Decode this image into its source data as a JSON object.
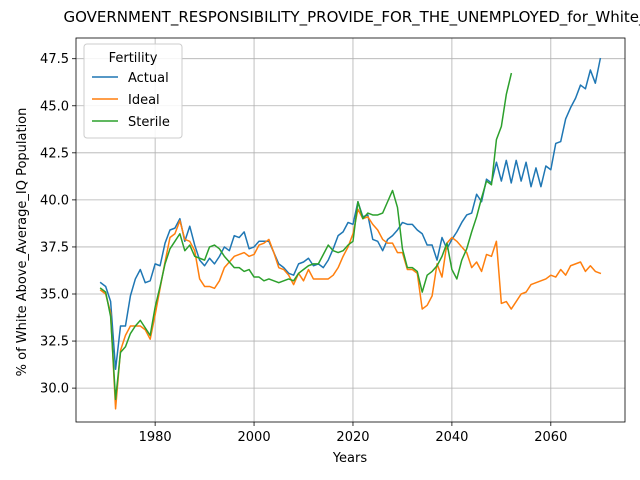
{
  "chart_data": {
    "type": "line",
    "title": "GOVERNMENT_RESPONSIBILITY_PROVIDE_FOR_THE_UNEMPLOYED_for_White_",
    "xlabel": "Years",
    "ylabel": "% of White Above_Average_IQ Population",
    "xlim": [
      1964,
      2075
    ],
    "ylim": [
      28.2,
      48.6
    ],
    "xticks": [
      1980,
      2000,
      2020,
      2040,
      2060
    ],
    "yticks": [
      30.0,
      32.5,
      35.0,
      37.5,
      40.0,
      42.5,
      45.0,
      47.5
    ],
    "ytick_labels": [
      "30.0",
      "32.5",
      "35.0",
      "37.5",
      "40.0",
      "42.5",
      "45.0",
      "47.5"
    ],
    "grid": true,
    "legend": {
      "title": "Fertility",
      "placement": "top-left"
    },
    "series": [
      {
        "name": "Actual",
        "color": "#1f77b4",
        "x": [
          1969,
          1970,
          1971,
          1972,
          1973,
          1974,
          1975,
          1976,
          1977,
          1978,
          1979,
          1980,
          1981,
          1982,
          1983,
          1984,
          1985,
          1986,
          1987,
          1988,
          1989,
          1990,
          1991,
          1992,
          1993,
          1994,
          1995,
          1996,
          1997,
          1998,
          1999,
          2000,
          2001,
          2002,
          2003,
          2004,
          2005,
          2006,
          2007,
          2008,
          2009,
          2010,
          2011,
          2012,
          2013,
          2014,
          2015,
          2016,
          2017,
          2018,
          2019,
          2020,
          2021,
          2022,
          2023,
          2024,
          2025,
          2026,
          2027,
          2028,
          2029,
          2030,
          2031,
          2032,
          2033,
          2034,
          2035,
          2036,
          2037,
          2038,
          2039,
          2040,
          2041,
          2042,
          2043,
          2044,
          2045,
          2046,
          2047,
          2048,
          2049,
          2050,
          2051,
          2052,
          2053,
          2054,
          2055,
          2056,
          2057,
          2058,
          2059,
          2060,
          2061,
          2062,
          2063,
          2064,
          2065,
          2066,
          2067,
          2068,
          2069,
          2070
        ],
        "y": [
          35.6,
          35.4,
          34.6,
          31.0,
          33.3,
          33.3,
          34.9,
          35.8,
          36.3,
          35.6,
          35.7,
          36.6,
          36.5,
          37.7,
          38.4,
          38.5,
          39.0,
          37.8,
          38.6,
          37.6,
          36.8,
          36.5,
          36.9,
          36.6,
          37.0,
          37.5,
          37.3,
          38.1,
          38.0,
          38.3,
          37.4,
          37.5,
          37.8,
          37.8,
          37.8,
          37.2,
          36.6,
          36.4,
          36.1,
          36.0,
          36.6,
          36.7,
          36.9,
          36.5,
          36.6,
          36.4,
          36.8,
          37.4,
          38.1,
          38.3,
          38.8,
          38.7,
          39.9,
          39.1,
          39.2,
          37.9,
          37.8,
          37.3,
          37.9,
          38.1,
          38.4,
          38.8,
          38.7,
          38.7,
          38.4,
          38.2,
          37.6,
          37.6,
          36.8,
          38.0,
          37.4,
          37.9,
          38.3,
          38.8,
          39.2,
          39.3,
          40.3,
          39.9,
          41.1,
          40.9,
          42.0,
          41.0,
          42.1,
          40.9,
          42.1,
          41.0,
          42.0,
          40.7,
          41.7,
          40.7,
          41.8,
          41.6,
          43.0,
          43.1,
          44.3,
          44.9,
          45.4,
          46.1,
          45.9,
          46.9,
          46.2,
          47.5
        ]
      },
      {
        "name": "Ideal",
        "color": "#ff7f0e",
        "x": [
          1969,
          1970,
          1971,
          1972,
          1973,
          1974,
          1975,
          1976,
          1977,
          1978,
          1979,
          1980,
          1981,
          1982,
          1983,
          1984,
          1985,
          1986,
          1987,
          1988,
          1989,
          1990,
          1991,
          1992,
          1993,
          1994,
          1995,
          1996,
          1997,
          1998,
          1999,
          2000,
          2001,
          2002,
          2003,
          2004,
          2005,
          2006,
          2007,
          2008,
          2009,
          2010,
          2011,
          2012,
          2013,
          2014,
          2015,
          2016,
          2017,
          2018,
          2019,
          2020,
          2021,
          2022,
          2023,
          2024,
          2025,
          2026,
          2027,
          2028,
          2029,
          2030,
          2031,
          2032,
          2033,
          2034,
          2035,
          2036,
          2037,
          2038,
          2039,
          2040,
          2041,
          2042,
          2043,
          2044,
          2045,
          2046,
          2047,
          2048,
          2049,
          2050,
          2051,
          2052,
          2053,
          2054,
          2055,
          2056,
          2057,
          2058,
          2059,
          2060,
          2061,
          2062,
          2063,
          2064,
          2065,
          2066,
          2067,
          2068,
          2069,
          2070
        ],
        "y": [
          35.2,
          35.0,
          34.0,
          28.9,
          32.0,
          32.8,
          33.3,
          33.3,
          33.3,
          33.1,
          32.6,
          33.9,
          35.3,
          36.7,
          38.0,
          38.2,
          38.9,
          37.9,
          37.8,
          37.3,
          35.8,
          35.4,
          35.4,
          35.3,
          35.7,
          36.4,
          36.7,
          37.0,
          37.1,
          37.2,
          37.0,
          37.1,
          37.6,
          37.7,
          37.9,
          37.2,
          36.4,
          36.3,
          36.0,
          35.5,
          36.1,
          35.7,
          36.3,
          35.8,
          35.8,
          35.8,
          35.8,
          36.0,
          36.4,
          37.0,
          37.5,
          38.2,
          39.5,
          39.0,
          39.1,
          38.7,
          38.4,
          37.9,
          37.7,
          37.7,
          37.2,
          37.2,
          36.3,
          36.3,
          36.1,
          34.2,
          34.4,
          34.9,
          36.6,
          35.9,
          37.7,
          38.0,
          37.8,
          37.5,
          37.2,
          36.4,
          36.7,
          36.2,
          37.1,
          37.0,
          37.8,
          34.5,
          34.6,
          34.2,
          34.6,
          35.0,
          35.1,
          35.5,
          35.6,
          35.7,
          35.8,
          36.0,
          35.9,
          36.3,
          36.0,
          36.5,
          36.6,
          36.7,
          36.2,
          36.5,
          36.2,
          36.1
        ]
      },
      {
        "name": "Sterile",
        "color": "#2ca02c",
        "x": [
          1969,
          1970,
          1971,
          1972,
          1973,
          1974,
          1975,
          1976,
          1977,
          1978,
          1979,
          1980,
          1981,
          1982,
          1983,
          1984,
          1985,
          1986,
          1987,
          1988,
          1989,
          1990,
          1991,
          1992,
          1993,
          1994,
          1995,
          1996,
          1997,
          1998,
          1999,
          2000,
          2001,
          2002,
          2003,
          2004,
          2005,
          2006,
          2007,
          2008,
          2009,
          2010,
          2011,
          2012,
          2013,
          2014,
          2015,
          2016,
          2017,
          2018,
          2019,
          2020,
          2021,
          2022,
          2023,
          2024,
          2025,
          2026,
          2027,
          2028,
          2029,
          2030,
          2031,
          2032,
          2033,
          2034,
          2035,
          2036,
          2037,
          2038,
          2039,
          2040,
          2041,
          2042,
          2043,
          2044,
          2045,
          2046,
          2047,
          2048,
          2049,
          2050,
          2051,
          2052
        ],
        "y": [
          35.3,
          35.1,
          33.8,
          29.4,
          31.9,
          32.2,
          32.9,
          33.3,
          33.6,
          33.2,
          32.8,
          34.3,
          35.4,
          36.6,
          37.4,
          37.8,
          38.2,
          37.3,
          37.6,
          37.0,
          36.9,
          36.8,
          37.5,
          37.6,
          37.4,
          37.0,
          36.7,
          36.4,
          36.4,
          36.2,
          36.3,
          35.9,
          35.9,
          35.7,
          35.8,
          35.7,
          35.6,
          35.7,
          35.8,
          35.7,
          36.1,
          36.3,
          36.5,
          36.6,
          36.6,
          37.1,
          37.6,
          37.3,
          37.2,
          37.3,
          37.6,
          37.8,
          39.9,
          39.0,
          39.3,
          39.2,
          39.2,
          39.3,
          39.9,
          40.5,
          39.6,
          37.4,
          36.4,
          36.4,
          36.2,
          35.1,
          36.0,
          36.2,
          36.5,
          37.0,
          37.7,
          36.3,
          35.8,
          36.8,
          37.4,
          38.3,
          39.1,
          40.1,
          41.0,
          40.8,
          43.2,
          43.9,
          45.6,
          46.7
        ]
      }
    ]
  }
}
